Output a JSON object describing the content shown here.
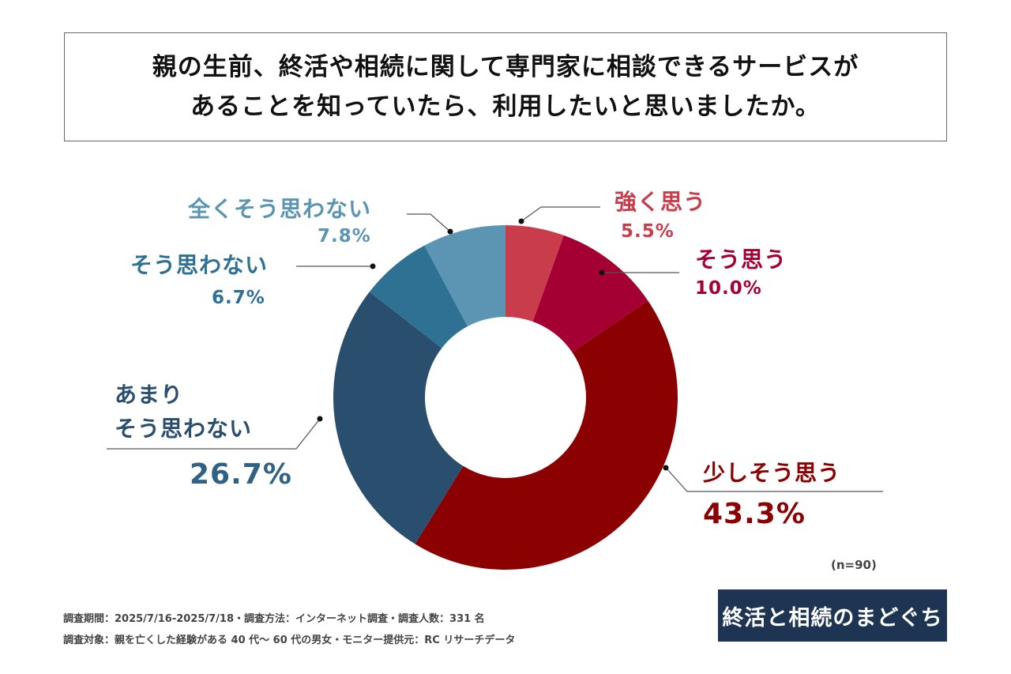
{
  "title_lines": [
    "親の生前、終活や相続に関して専門家に相談できるサービスが",
    "あることを知っていたら、利用したいと思いましたか。"
  ],
  "chart_data": {
    "type": "pie",
    "donut": true,
    "start": "top, clockwise",
    "categories": [
      "強く思う",
      "そう思う",
      "少しそう思う",
      "あまりそう思わない",
      "そう思わない",
      "全くそう思わない"
    ],
    "values": [
      5.5,
      10.0,
      43.3,
      26.7,
      6.7,
      7.8
    ],
    "value_labels": [
      "5.5%",
      "10.0%",
      "43.3%",
      "26.7%",
      "6.7%",
      "7.8%"
    ],
    "colors": [
      "#c83c4c",
      "#a50034",
      "#8b0000",
      "#2a4e6e",
      "#2f7193",
      "#5b95b3"
    ],
    "label_lines": {
      "amari": [
        "あまり",
        "そう思わない"
      ]
    },
    "n_label": "(n=90)"
  },
  "logo_text": "終活と相続のまどぐち",
  "footer": [
    "調査期間：2025/7/16-2025/7/18・調査方法：インターネット調査・調査人数：331 名",
    "調査対象：親を亡くした経験がある 40 代～ 60 代の男女・モニター提供元：RC リサーチデータ"
  ]
}
